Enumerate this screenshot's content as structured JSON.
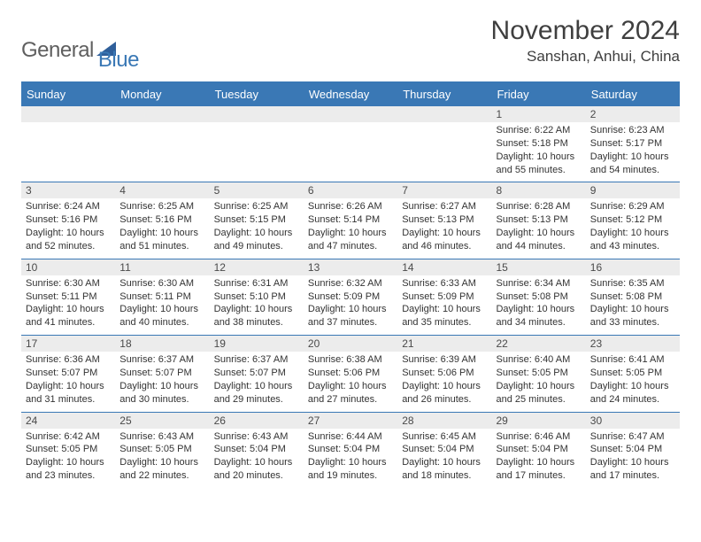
{
  "logo": {
    "text1": "General",
    "text2": "Blue",
    "color1": "#5f5f5f",
    "color2": "#3a78b5"
  },
  "header": {
    "month": "November 2024",
    "location": "Sanshan, Anhui, China"
  },
  "colors": {
    "accent": "#3a78b5",
    "dayBg": "#ececec",
    "text": "#333333"
  },
  "weekdays": [
    "Sunday",
    "Monday",
    "Tuesday",
    "Wednesday",
    "Thursday",
    "Friday",
    "Saturday"
  ],
  "weeks": [
    [
      {
        "n": "",
        "t": ""
      },
      {
        "n": "",
        "t": ""
      },
      {
        "n": "",
        "t": ""
      },
      {
        "n": "",
        "t": ""
      },
      {
        "n": "",
        "t": ""
      },
      {
        "n": "1",
        "t": "Sunrise: 6:22 AM\nSunset: 5:18 PM\nDaylight: 10 hours and 55 minutes."
      },
      {
        "n": "2",
        "t": "Sunrise: 6:23 AM\nSunset: 5:17 PM\nDaylight: 10 hours and 54 minutes."
      }
    ],
    [
      {
        "n": "3",
        "t": "Sunrise: 6:24 AM\nSunset: 5:16 PM\nDaylight: 10 hours and 52 minutes."
      },
      {
        "n": "4",
        "t": "Sunrise: 6:25 AM\nSunset: 5:16 PM\nDaylight: 10 hours and 51 minutes."
      },
      {
        "n": "5",
        "t": "Sunrise: 6:25 AM\nSunset: 5:15 PM\nDaylight: 10 hours and 49 minutes."
      },
      {
        "n": "6",
        "t": "Sunrise: 6:26 AM\nSunset: 5:14 PM\nDaylight: 10 hours and 47 minutes."
      },
      {
        "n": "7",
        "t": "Sunrise: 6:27 AM\nSunset: 5:13 PM\nDaylight: 10 hours and 46 minutes."
      },
      {
        "n": "8",
        "t": "Sunrise: 6:28 AM\nSunset: 5:13 PM\nDaylight: 10 hours and 44 minutes."
      },
      {
        "n": "9",
        "t": "Sunrise: 6:29 AM\nSunset: 5:12 PM\nDaylight: 10 hours and 43 minutes."
      }
    ],
    [
      {
        "n": "10",
        "t": "Sunrise: 6:30 AM\nSunset: 5:11 PM\nDaylight: 10 hours and 41 minutes."
      },
      {
        "n": "11",
        "t": "Sunrise: 6:30 AM\nSunset: 5:11 PM\nDaylight: 10 hours and 40 minutes."
      },
      {
        "n": "12",
        "t": "Sunrise: 6:31 AM\nSunset: 5:10 PM\nDaylight: 10 hours and 38 minutes."
      },
      {
        "n": "13",
        "t": "Sunrise: 6:32 AM\nSunset: 5:09 PM\nDaylight: 10 hours and 37 minutes."
      },
      {
        "n": "14",
        "t": "Sunrise: 6:33 AM\nSunset: 5:09 PM\nDaylight: 10 hours and 35 minutes."
      },
      {
        "n": "15",
        "t": "Sunrise: 6:34 AM\nSunset: 5:08 PM\nDaylight: 10 hours and 34 minutes."
      },
      {
        "n": "16",
        "t": "Sunrise: 6:35 AM\nSunset: 5:08 PM\nDaylight: 10 hours and 33 minutes."
      }
    ],
    [
      {
        "n": "17",
        "t": "Sunrise: 6:36 AM\nSunset: 5:07 PM\nDaylight: 10 hours and 31 minutes."
      },
      {
        "n": "18",
        "t": "Sunrise: 6:37 AM\nSunset: 5:07 PM\nDaylight: 10 hours and 30 minutes."
      },
      {
        "n": "19",
        "t": "Sunrise: 6:37 AM\nSunset: 5:07 PM\nDaylight: 10 hours and 29 minutes."
      },
      {
        "n": "20",
        "t": "Sunrise: 6:38 AM\nSunset: 5:06 PM\nDaylight: 10 hours and 27 minutes."
      },
      {
        "n": "21",
        "t": "Sunrise: 6:39 AM\nSunset: 5:06 PM\nDaylight: 10 hours and 26 minutes."
      },
      {
        "n": "22",
        "t": "Sunrise: 6:40 AM\nSunset: 5:05 PM\nDaylight: 10 hours and 25 minutes."
      },
      {
        "n": "23",
        "t": "Sunrise: 6:41 AM\nSunset: 5:05 PM\nDaylight: 10 hours and 24 minutes."
      }
    ],
    [
      {
        "n": "24",
        "t": "Sunrise: 6:42 AM\nSunset: 5:05 PM\nDaylight: 10 hours and 23 minutes."
      },
      {
        "n": "25",
        "t": "Sunrise: 6:43 AM\nSunset: 5:05 PM\nDaylight: 10 hours and 22 minutes."
      },
      {
        "n": "26",
        "t": "Sunrise: 6:43 AM\nSunset: 5:04 PM\nDaylight: 10 hours and 20 minutes."
      },
      {
        "n": "27",
        "t": "Sunrise: 6:44 AM\nSunset: 5:04 PM\nDaylight: 10 hours and 19 minutes."
      },
      {
        "n": "28",
        "t": "Sunrise: 6:45 AM\nSunset: 5:04 PM\nDaylight: 10 hours and 18 minutes."
      },
      {
        "n": "29",
        "t": "Sunrise: 6:46 AM\nSunset: 5:04 PM\nDaylight: 10 hours and 17 minutes."
      },
      {
        "n": "30",
        "t": "Sunrise: 6:47 AM\nSunset: 5:04 PM\nDaylight: 10 hours and 17 minutes."
      }
    ]
  ]
}
